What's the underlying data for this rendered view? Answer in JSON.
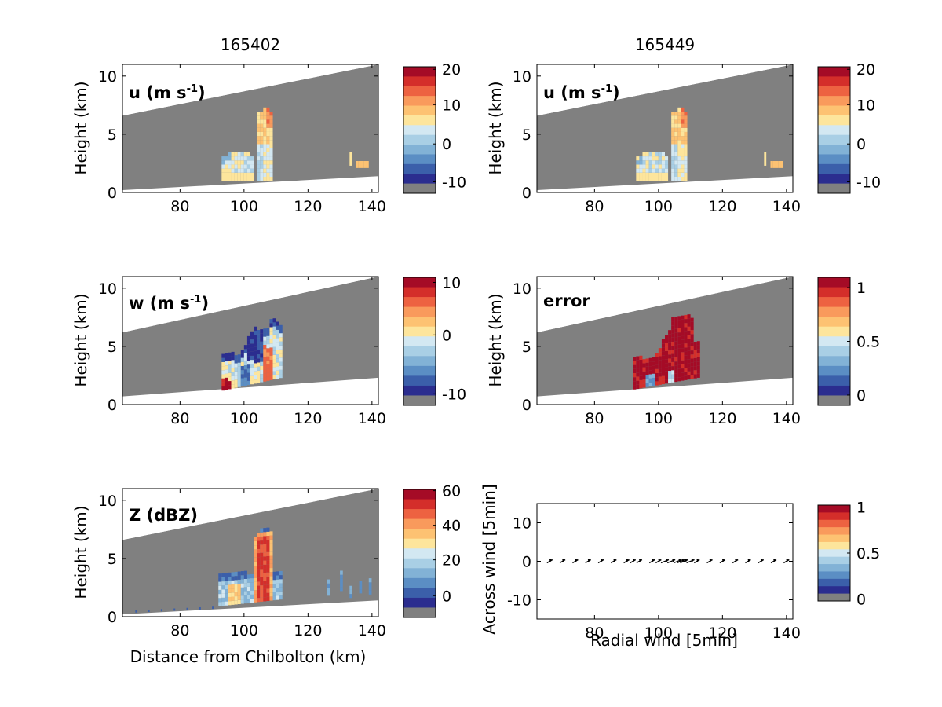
{
  "column_titles": [
    "165402",
    "165449"
  ],
  "colors": {
    "ramp": [
      "#2b2d8f",
      "#3b5faa",
      "#5b8ec4",
      "#82b2d6",
      "#a9cfe5",
      "#d3e8f2",
      "#fde59c",
      "#fdc272",
      "#f99a5c",
      "#ed6241",
      "#d42e2a",
      "#a50b26"
    ],
    "nodata": "#808080",
    "outside": "#ffffff"
  },
  "panels": [
    {
      "id": "u1",
      "label": "u (m s",
      "label_sup": "-1",
      "ylabel": "Height (km)",
      "xlabel": "",
      "xticks": [
        "80",
        "100",
        "120",
        "140"
      ],
      "yticks": [
        "0",
        "5",
        "10"
      ],
      "cbar_ticks": [
        "20",
        "10",
        "0",
        "-10"
      ],
      "cbar_range": [
        -12.5,
        20
      ],
      "top_cut": [
        6.6,
        11.0
      ],
      "bottom_cut": [
        0.2,
        1.4
      ]
    },
    {
      "id": "u2",
      "label": "u (m s",
      "label_sup": "-1",
      "ylabel": "Height (km)",
      "xlabel": "",
      "xticks": [
        "80",
        "100",
        "120",
        "140"
      ],
      "yticks": [
        "0",
        "5",
        "10"
      ],
      "cbar_ticks": [
        "20",
        "10",
        "0",
        "-10"
      ],
      "cbar_range": [
        -12.5,
        20
      ],
      "top_cut": [
        6.6,
        11.0
      ],
      "bottom_cut": [
        0.2,
        1.4
      ]
    },
    {
      "id": "w1",
      "label": "w (m s",
      "label_sup": "-1",
      "ylabel": "Height (km)",
      "xlabel": "",
      "xticks": [
        "80",
        "100",
        "120",
        "140"
      ],
      "yticks": [
        "0",
        "5",
        "10"
      ],
      "cbar_ticks": [
        "10",
        "0",
        "-10"
      ],
      "cbar_range": [
        -13,
        10
      ],
      "top_cut": [
        6.2,
        11.0
      ],
      "bottom_cut": [
        0.7,
        2.3
      ]
    },
    {
      "id": "err",
      "label": "error",
      "label_sup": "",
      "ylabel": "Height (km)",
      "xlabel": "",
      "xticks": [
        "80",
        "100",
        "120",
        "140"
      ],
      "yticks": [
        "0",
        "5",
        "10"
      ],
      "cbar_ticks": [
        "1",
        "0.5",
        "0"
      ],
      "cbar_range": [
        -0.1,
        1.1
      ],
      "top_cut": [
        6.2,
        11.0
      ],
      "bottom_cut": [
        0.7,
        2.3
      ]
    },
    {
      "id": "z1",
      "label": "Z (dBZ)",
      "label_sup": "",
      "ylabel": "Height (km)",
      "xlabel": "Distance from Chilbolton (km)",
      "xticks": [
        "80",
        "100",
        "120",
        "140"
      ],
      "yticks": [
        "0",
        "5",
        "10"
      ],
      "cbar_ticks": [
        "60",
        "40",
        "20",
        "0"
      ],
      "cbar_range": [
        -15,
        60
      ],
      "top_cut": [
        6.6,
        11.0
      ],
      "bottom_cut": [
        0.2,
        1.4
      ]
    }
  ],
  "quiver": {
    "ylabel": "Across wind [5min]",
    "xlabel": "Radial wind [5min]",
    "xticks": [
      "80",
      "100",
      "120",
      "140"
    ],
    "yticks": [
      "10",
      "0",
      "-10"
    ],
    "cbar_ticks": [
      "1",
      "0.5",
      "0"
    ]
  },
  "chart_data": [
    {
      "type": "heatmap",
      "title": "165402",
      "label": "u (m s-1)",
      "x_range": [
        62,
        142
      ],
      "y_range": [
        0,
        11
      ],
      "colorbar_range": [
        -12.5,
        20
      ]
    },
    {
      "type": "heatmap",
      "title": "165449",
      "label": "u (m s-1)",
      "x_range": [
        62,
        142
      ],
      "y_range": [
        0,
        11
      ],
      "colorbar_range": [
        -12.5,
        20
      ]
    },
    {
      "type": "heatmap",
      "label": "w (m s-1)",
      "x_range": [
        62,
        142
      ],
      "y_range": [
        0,
        11
      ],
      "colorbar_range": [
        -13,
        10
      ]
    },
    {
      "type": "heatmap",
      "label": "error",
      "x_range": [
        62,
        142
      ],
      "y_range": [
        0,
        11
      ],
      "colorbar_range": [
        -0.1,
        1.1
      ]
    },
    {
      "type": "heatmap",
      "label": "Z (dBZ)",
      "xlabel": "Distance from Chilbolton (km)",
      "ylabel": "Height (km)",
      "x_range": [
        62,
        142
      ],
      "y_range": [
        0,
        11
      ],
      "colorbar_range": [
        -15,
        60
      ]
    },
    {
      "type": "scatter",
      "xlabel": "Radial wind [5min]",
      "ylabel": "Across wind [5min]",
      "x_range": [
        62,
        142
      ],
      "y_range": [
        -15,
        15
      ],
      "colorbar_range": [
        0,
        1
      ],
      "x": [
        66,
        70,
        74,
        78,
        82,
        86,
        90,
        92,
        94,
        98,
        100,
        102,
        104,
        106,
        107,
        108,
        110,
        112,
        116,
        120,
        124,
        128,
        132,
        136,
        140
      ],
      "y": [
        0,
        0,
        0,
        0,
        0,
        0,
        0,
        0,
        0,
        0,
        0,
        0,
        0,
        0,
        0,
        0,
        0,
        0,
        0,
        0,
        0,
        0,
        0,
        0,
        0
      ]
    }
  ]
}
